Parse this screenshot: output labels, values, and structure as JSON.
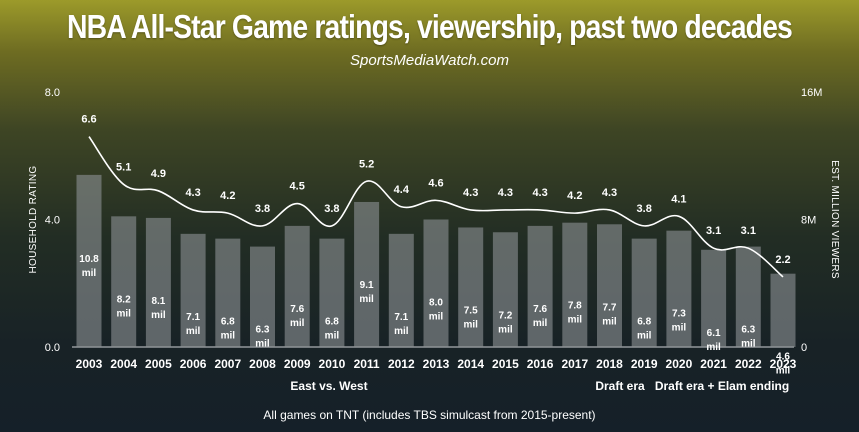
{
  "chart_data": {
    "type": "bar",
    "title": "NBA All-Star Game ratings, viewership, past two decades",
    "subtitle": "SportsMediaWatch.com",
    "footnote": "All games on TNT (includes TBS simulcast from 2015-present)",
    "categories": [
      "2003",
      "2004",
      "2005",
      "2006",
      "2007",
      "2008",
      "2009",
      "2010",
      "2011",
      "2012",
      "2013",
      "2014",
      "2015",
      "2016",
      "2017",
      "2018",
      "2019",
      "2020",
      "2021",
      "2022",
      "2023"
    ],
    "series": [
      {
        "name": "EST. MILLION VIEWERS",
        "type": "bar",
        "axis": "right",
        "values": [
          10.8,
          8.2,
          8.1,
          7.1,
          6.8,
          6.3,
          7.6,
          6.8,
          9.1,
          7.1,
          8.0,
          7.5,
          7.2,
          7.6,
          7.8,
          7.7,
          6.8,
          7.3,
          6.1,
          6.3,
          4.6
        ],
        "labels": [
          "10.8 mil",
          "8.2 mil",
          "8.1 mil",
          "7.1 mil",
          "6.8 mil",
          "6.3 mil",
          "7.6 mil",
          "6.8 mil",
          "9.1 mil",
          "7.1 mil",
          "8.0 mil",
          "7.5 mil",
          "7.2 mil",
          "7.6 mil",
          "7.8 mil",
          "7.7 mil",
          "6.8 mil",
          "7.3 mil",
          "6.1 mil",
          "6.3 mil",
          "4.6 mil"
        ],
        "color": "#8a8f93"
      },
      {
        "name": "HOUSEHOLD RATING",
        "type": "line",
        "axis": "left",
        "values": [
          6.6,
          5.1,
          4.9,
          4.3,
          4.2,
          3.8,
          4.5,
          3.8,
          5.2,
          4.4,
          4.6,
          4.3,
          4.3,
          4.3,
          4.2,
          4.3,
          3.8,
          4.1,
          3.1,
          3.1,
          2.2
        ],
        "labels": [
          "6.6",
          "5.1",
          "4.9",
          "4.3",
          "4.2",
          "3.8",
          "4.5",
          "3.8",
          "5.2",
          "4.4",
          "4.6",
          "4.3",
          "4.3",
          "4.3",
          "4.2",
          "4.3",
          "3.8",
          "4.1",
          "3.1",
          "3.1",
          "2.2"
        ],
        "color": "#ffffff"
      }
    ],
    "ylabel_left": "HOUSEHOLD RATING",
    "ylabel_right": "EST. MILLION VIEWERS",
    "ylim_left": [
      0,
      8
    ],
    "ylim_right": [
      0,
      16
    ],
    "yticks_left": [
      "0.0",
      "4.0",
      "8.0"
    ],
    "yticks_right": [
      "0",
      "8M",
      "16M"
    ],
    "eras": [
      {
        "label": "East vs. West",
        "from": "2003",
        "to": "2017"
      },
      {
        "label": "Draft era",
        "from": "2018",
        "to": "2019"
      },
      {
        "label": "Draft era + Elam ending",
        "from": "2020",
        "to": "2023"
      }
    ],
    "grid": false,
    "legend": "none"
  }
}
